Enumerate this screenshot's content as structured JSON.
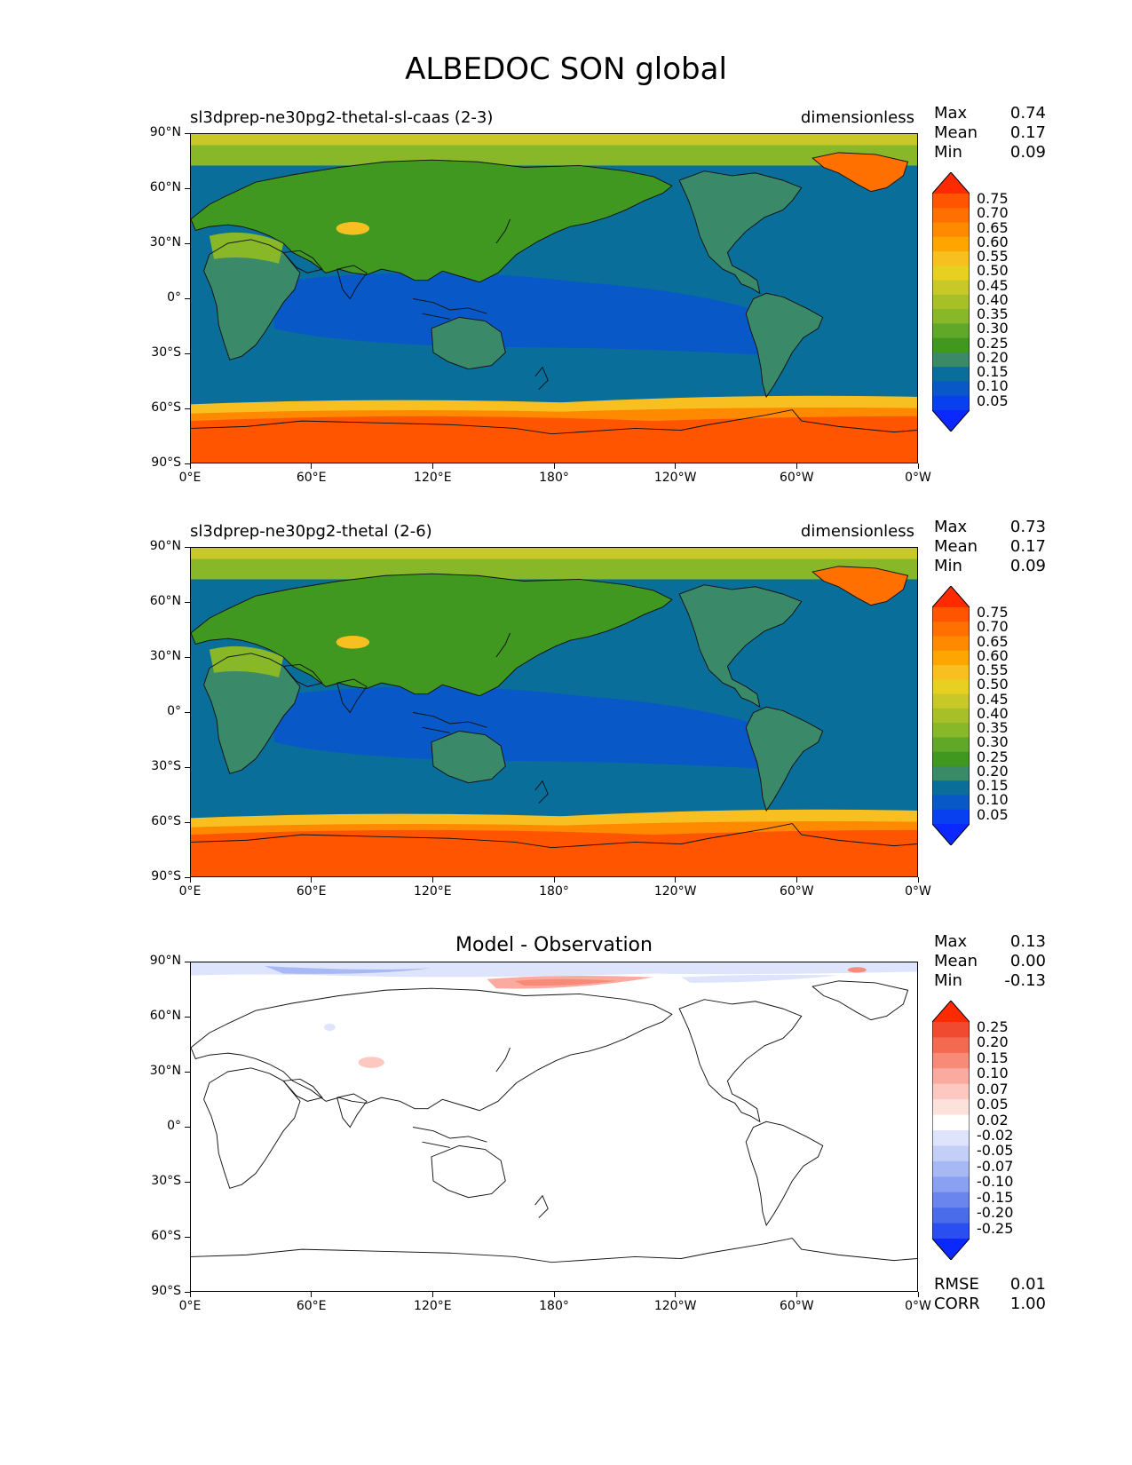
{
  "title": "ALBEDOC SON global",
  "x_ticks": [
    "0°E",
    "60°E",
    "120°E",
    "180°",
    "120°W",
    "60°W",
    "0°W"
  ],
  "y_ticks": [
    "90°N",
    "60°N",
    "30°N",
    "0°",
    "30°S",
    "60°S",
    "90°S"
  ],
  "panels": [
    {
      "left_title": "sl3dprep-ne30pg2-thetal-sl-caas (2-3)",
      "right_title": "dimensionless",
      "stats": {
        "max_label": "Max",
        "max": "0.74",
        "mean_label": "Mean",
        "mean": "0.17",
        "min_label": "Min",
        "min": "0.09"
      },
      "colorbar": {
        "labels": [
          "0.75",
          "0.70",
          "0.65",
          "0.60",
          "0.55",
          "0.50",
          "0.45",
          "0.40",
          "0.35",
          "0.30",
          "0.25",
          "0.20",
          "0.15",
          "0.10",
          "0.05"
        ],
        "colors": [
          "#ff2a00",
          "#ff5500",
          "#ff7000",
          "#ff8a00",
          "#ffa500",
          "#f7c020",
          "#e8d020",
          "#c8c828",
          "#a8c028",
          "#88b828",
          "#60a828",
          "#409820",
          "#3a8a6a",
          "#0a6e9a",
          "#0858c8",
          "#0840f0",
          "#0a28ff"
        ]
      }
    },
    {
      "left_title": "sl3dprep-ne30pg2-thetal (2-6)",
      "right_title": "dimensionless",
      "stats": {
        "max_label": "Max",
        "max": "0.73",
        "mean_label": "Mean",
        "mean": "0.17",
        "min_label": "Min",
        "min": "0.09"
      },
      "colorbar": {
        "labels": [
          "0.75",
          "0.70",
          "0.65",
          "0.60",
          "0.55",
          "0.50",
          "0.45",
          "0.40",
          "0.35",
          "0.30",
          "0.25",
          "0.20",
          "0.15",
          "0.10",
          "0.05"
        ],
        "colors": [
          "#ff2a00",
          "#ff5500",
          "#ff7000",
          "#ff8a00",
          "#ffa500",
          "#f7c020",
          "#e8d020",
          "#c8c828",
          "#a8c028",
          "#88b828",
          "#60a828",
          "#409820",
          "#3a8a6a",
          "#0a6e9a",
          "#0858c8",
          "#0840f0",
          "#0a28ff"
        ]
      }
    },
    {
      "center_title": "Model - Observation",
      "stats": {
        "max_label": "Max",
        "max": "0.13",
        "mean_label": "Mean",
        "mean": "0.00",
        "min_label": "Min",
        "min": "-0.13"
      },
      "colorbar": {
        "labels": [
          "0.25",
          "0.20",
          "0.15",
          "0.10",
          "0.07",
          "0.05",
          "0.02",
          "-0.02",
          "-0.05",
          "-0.07",
          "-0.10",
          "-0.15",
          "-0.20",
          "-0.25"
        ],
        "colors": [
          "#ff2a00",
          "#f04a30",
          "#f46a50",
          "#f88a78",
          "#fbaaa0",
          "#fcc8c0",
          "#fde2dc",
          "#ffffff",
          "#dde4fb",
          "#c4cff8",
          "#a8b8f5",
          "#8aa0f2",
          "#6a86ee",
          "#4a6ceb",
          "#2a4ef0",
          "#0a28ff"
        ]
      },
      "rmse_label": "RMSE",
      "rmse": "0.01",
      "corr_label": "CORR",
      "corr": "1.00"
    }
  ]
}
